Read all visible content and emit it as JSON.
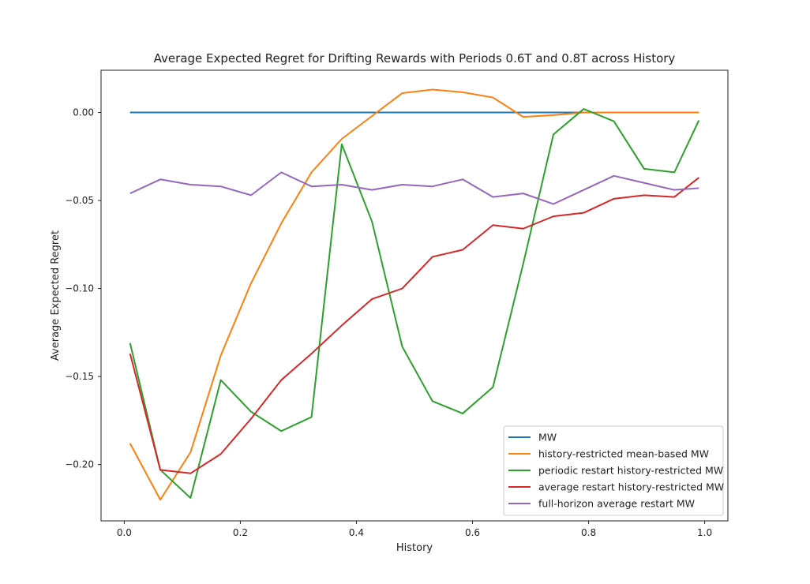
{
  "chart_data": {
    "type": "line",
    "title": "Average Expected Regret for Drifting Rewards with Periods 0.6T and 0.8T across History",
    "xlabel": "History",
    "ylabel": "Average Expected Regret",
    "xlim": [
      -0.04,
      1.04
    ],
    "ylim": [
      -0.232,
      0.024
    ],
    "xticks": [
      0.0,
      0.2,
      0.4,
      0.6,
      0.8,
      1.0
    ],
    "xtick_labels": [
      "0.0",
      "0.2",
      "0.4",
      "0.6",
      "0.8",
      "1.0"
    ],
    "yticks": [
      0.0,
      -0.05,
      -0.1,
      -0.15,
      -0.2
    ],
    "ytick_labels": [
      "0.00",
      "−0.05",
      "−0.10",
      "−0.15",
      "−0.20"
    ],
    "grid": false,
    "legend_position": "lower right",
    "x": [
      0.01,
      0.0621,
      0.1142,
      0.1663,
      0.2184,
      0.2705,
      0.3226,
      0.3747,
      0.4268,
      0.4789,
      0.531,
      0.5831,
      0.6352,
      0.6873,
      0.7394,
      0.7915,
      0.8436,
      0.8957,
      0.9478,
      0.99
    ],
    "series": [
      {
        "name": "MW",
        "color": "#1f77b4",
        "values": [
          0.0,
          0.0,
          0.0,
          0.0,
          0.0,
          0.0,
          0.0,
          0.0,
          0.0,
          0.0,
          0.0,
          0.0,
          0.0,
          0.0,
          0.0,
          0.0,
          0.0,
          0.0,
          0.0,
          0.0
        ]
      },
      {
        "name": "history-restricted mean-based MW",
        "color": "#ff7f0e",
        "values": [
          -0.188,
          -0.22,
          -0.193,
          -0.138,
          -0.097,
          -0.063,
          -0.034,
          -0.015,
          -0.002,
          0.011,
          0.013,
          0.0115,
          0.0085,
          -0.0025,
          -0.0015,
          0.0,
          0.0,
          0.0,
          0.0,
          0.0
        ]
      },
      {
        "name": "periodic restart history-restricted MW",
        "color": "#2ca02c",
        "values": [
          -0.131,
          -0.203,
          -0.219,
          -0.152,
          -0.17,
          -0.181,
          -0.173,
          -0.018,
          -0.062,
          -0.133,
          -0.164,
          -0.171,
          -0.156,
          -0.086,
          -0.0125,
          0.002,
          -0.005,
          -0.032,
          -0.034,
          -0.0045
        ]
      },
      {
        "name": "average restart history-restricted MW",
        "color": "#d62728",
        "values": [
          -0.137,
          -0.203,
          -0.205,
          -0.194,
          -0.174,
          -0.152,
          -0.137,
          -0.121,
          -0.106,
          -0.1,
          -0.082,
          -0.078,
          -0.064,
          -0.066,
          -0.059,
          -0.057,
          -0.049,
          -0.047,
          -0.048,
          -0.037
        ]
      },
      {
        "name": "full-horizon average restart MW",
        "color": "#9467bd",
        "values": [
          -0.046,
          -0.038,
          -0.041,
          -0.042,
          -0.047,
          -0.034,
          -0.042,
          -0.041,
          -0.044,
          -0.041,
          -0.042,
          -0.038,
          -0.048,
          -0.046,
          -0.052,
          -0.044,
          -0.036,
          -0.04,
          -0.044,
          -0.043
        ]
      }
    ]
  }
}
